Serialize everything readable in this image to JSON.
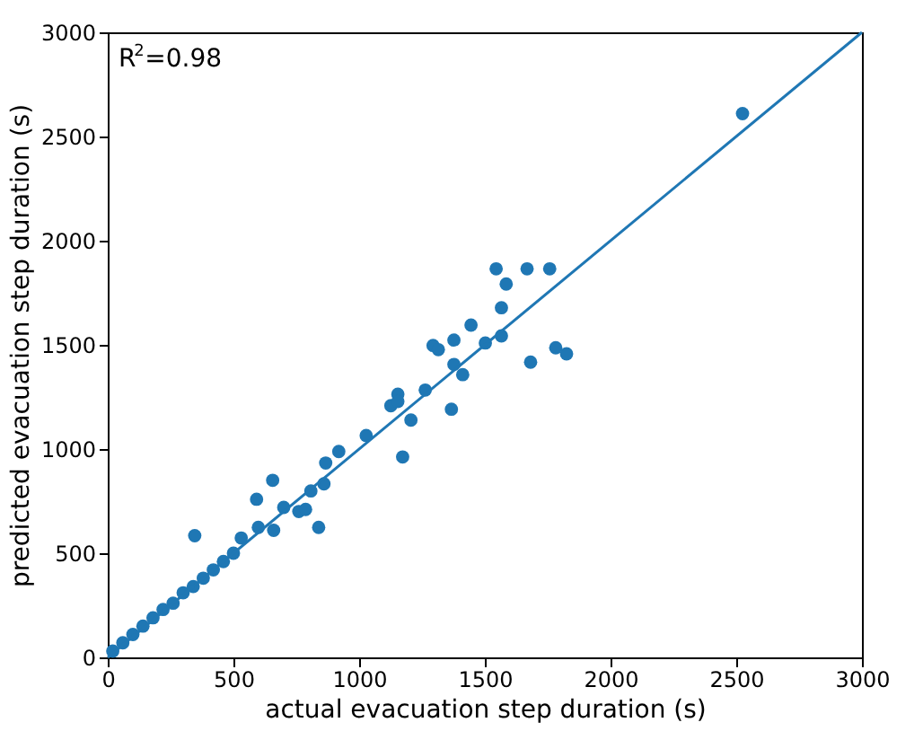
{
  "chart_data": {
    "type": "scatter",
    "xlabel": "actual evacuation step duration (s)",
    "ylabel": "predicted evacuation step duration (s)",
    "annotations": [
      "R$^{2}$=0.98"
    ],
    "xlim": [
      0,
      3000
    ],
    "ylim": [
      0,
      3000
    ],
    "xticks": [
      0,
      500,
      1000,
      1500,
      2000,
      2500,
      3000
    ],
    "yticks": [
      0,
      500,
      1000,
      1500,
      2000,
      2500,
      3000
    ],
    "grid": false,
    "marker": "circle",
    "series": [
      {
        "color": "#1f77b4",
        "x": [
          20,
          60,
          100,
          140,
          180,
          220,
          260,
          300,
          340,
          380,
          420,
          460,
          500,
          346,
          531,
          592,
          599,
          656,
          660,
          700,
          760,
          787,
          808,
          839,
          860,
          867,
          919,
          1028,
          1126,
          1154,
          1154,
          1173,
          1206,
          1263,
          1294,
          1315,
          1367,
          1377,
          1377,
          1412,
          1445,
          1502,
          1545,
          1566,
          1566,
          1585,
          1668,
          1682,
          1758,
          1782,
          1825,
          2525
        ],
        "values": [
          30,
          70,
          110,
          150,
          190,
          230,
          260,
          310,
          340,
          380,
          420,
          460,
          500,
          584,
          573,
          759,
          624,
          850,
          610,
          720,
          700,
          710,
          799,
          624,
          833,
          933,
          988,
          1065,
          1208,
          1263,
          1228,
          962,
          1139,
          1283,
          1497,
          1477,
          1191,
          1406,
          1523,
          1357,
          1595,
          1509,
          1865,
          1543,
          1678,
          1792,
          1865,
          1417,
          1865,
          1486,
          1457,
          2610
        ]
      },
      {
        "type": "line",
        "color": "#1f77b4",
        "marker": "none",
        "x": [
          0,
          3000
        ],
        "values": [
          0,
          3000
        ]
      }
    ]
  }
}
